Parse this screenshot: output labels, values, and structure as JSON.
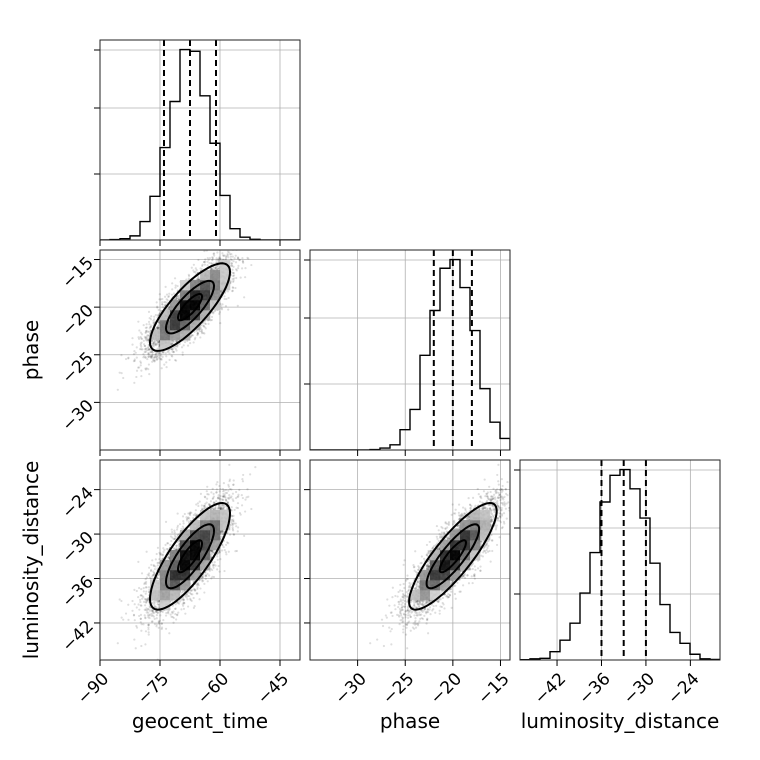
{
  "chart_data": {
    "type": "corner",
    "parameters": [
      {
        "name": "geocent_time",
        "label": "geocent_time",
        "range": [
          -90,
          -40
        ],
        "ticks": [
          -90,
          -75,
          -60,
          -45
        ],
        "tick_labels": [
          "−90",
          "−75",
          "−60",
          "−45"
        ],
        "quantiles": [
          -74,
          -67.5,
          -61
        ],
        "mean": -67.5,
        "sd": 5
      },
      {
        "name": "phase",
        "label": "phase",
        "range": [
          -35,
          -14
        ],
        "ticks": [
          -30,
          -25,
          -20,
          -15
        ],
        "tick_labels": [
          "−30",
          "−25",
          "−20",
          "−15"
        ],
        "quantiles": [
          -22,
          -20,
          -18
        ],
        "mean": -20,
        "sd": 2.3
      },
      {
        "name": "luminosity_distance",
        "label": "luminosity_distance",
        "range": [
          -47,
          -20
        ],
        "ticks": [
          -42,
          -36,
          -30,
          -24
        ],
        "tick_labels": [
          "−42",
          "−36",
          "−30",
          "−24"
        ],
        "quantiles": [
          -36,
          -33,
          -30
        ],
        "mean": -33,
        "sd": 3.6
      }
    ],
    "correlations": {
      "geocent_time-phase": 0.8,
      "geocent_time-luminosity_distance": 0.8,
      "phase-luminosity_distance": 0.85
    },
    "grid": true,
    "histogram_bins": 20
  }
}
